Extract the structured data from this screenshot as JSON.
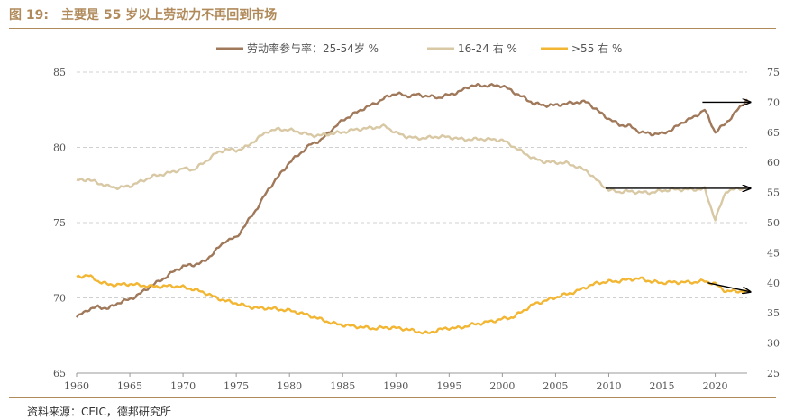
{
  "figure": {
    "number": "图 19:",
    "title": "主要是 55 岁以上劳动力不再回到市场"
  },
  "source": "资料来源：CEIC，德邦研究所",
  "colors": {
    "brand": "#b08a5a",
    "series_25_54": "#a0785a",
    "series_16_24": "#d8c8a4",
    "series_55": "#f2b633",
    "arrow": "#000000",
    "grid": "#d0d0d0"
  },
  "chart_data": {
    "type": "line",
    "x_range": [
      1960,
      2023
    ],
    "x_ticks": [
      1960,
      1965,
      1970,
      1975,
      1980,
      1985,
      1990,
      1995,
      2000,
      2005,
      2010,
      2015,
      2020
    ],
    "y_left": {
      "range": [
        65,
        85
      ],
      "ticks": [
        65,
        70,
        75,
        80,
        85
      ]
    },
    "y_right": {
      "range": [
        25,
        75
      ],
      "ticks": [
        25,
        30,
        35,
        40,
        45,
        50,
        55,
        60,
        65,
        70,
        75
      ]
    },
    "grid": "horizontal dashed",
    "legend_position": "top",
    "series": [
      {
        "name": "劳动率参与率：25-54岁 %",
        "axis": "left",
        "points": [
          [
            1960,
            68.7
          ],
          [
            1961,
            69.2
          ],
          [
            1962,
            69.4
          ],
          [
            1963,
            69.3
          ],
          [
            1964,
            69.7
          ],
          [
            1965,
            69.9
          ],
          [
            1966,
            70.3
          ],
          [
            1967,
            70.8
          ],
          [
            1968,
            71.2
          ],
          [
            1969,
            71.7
          ],
          [
            1970,
            72.1
          ],
          [
            1971,
            72.2
          ],
          [
            1972,
            72.4
          ],
          [
            1973,
            73.1
          ],
          [
            1974,
            73.8
          ],
          [
            1975,
            74.0
          ],
          [
            1976,
            75.0
          ],
          [
            1977,
            76.0
          ],
          [
            1978,
            77.2
          ],
          [
            1979,
            78.1
          ],
          [
            1980,
            79.0
          ],
          [
            1981,
            79.6
          ],
          [
            1982,
            80.2
          ],
          [
            1983,
            80.5
          ],
          [
            1984,
            81.2
          ],
          [
            1985,
            81.8
          ],
          [
            1986,
            82.2
          ],
          [
            1987,
            82.6
          ],
          [
            1988,
            82.9
          ],
          [
            1989,
            83.3
          ],
          [
            1990,
            83.6
          ],
          [
            1991,
            83.4
          ],
          [
            1992,
            83.5
          ],
          [
            1993,
            83.4
          ],
          [
            1994,
            83.3
          ],
          [
            1995,
            83.5
          ],
          [
            1996,
            83.7
          ],
          [
            1997,
            84.1
          ],
          [
            1998,
            84.1
          ],
          [
            1999,
            84.1
          ],
          [
            2000,
            84.1
          ],
          [
            2001,
            83.7
          ],
          [
            2002,
            83.3
          ],
          [
            2003,
            82.9
          ],
          [
            2004,
            82.8
          ],
          [
            2005,
            82.8
          ],
          [
            2006,
            82.9
          ],
          [
            2007,
            83.0
          ],
          [
            2008,
            83.0
          ],
          [
            2009,
            82.4
          ],
          [
            2010,
            81.9
          ],
          [
            2011,
            81.5
          ],
          [
            2012,
            81.4
          ],
          [
            2013,
            81.0
          ],
          [
            2014,
            80.9
          ],
          [
            2015,
            80.9
          ],
          [
            2016,
            81.2
          ],
          [
            2017,
            81.7
          ],
          [
            2018,
            82.0
          ],
          [
            2019,
            82.5
          ],
          [
            2020,
            81.0
          ],
          [
            2021,
            81.6
          ],
          [
            2022,
            82.4
          ],
          [
            2023,
            83.2
          ]
        ]
      },
      {
        "name": "16-24 右 %",
        "axis": "right",
        "points": [
          [
            1960,
            57.0
          ],
          [
            1961,
            57.2
          ],
          [
            1962,
            56.6
          ],
          [
            1963,
            56.0
          ],
          [
            1964,
            55.8
          ],
          [
            1965,
            56.1
          ],
          [
            1966,
            56.8
          ],
          [
            1967,
            57.6
          ],
          [
            1968,
            58.0
          ],
          [
            1969,
            58.4
          ],
          [
            1970,
            59.0
          ],
          [
            1971,
            58.8
          ],
          [
            1972,
            60.0
          ],
          [
            1973,
            61.4
          ],
          [
            1974,
            62.2
          ],
          [
            1975,
            62.0
          ],
          [
            1976,
            62.6
          ],
          [
            1977,
            64.0
          ],
          [
            1978,
            65.2
          ],
          [
            1979,
            65.5
          ],
          [
            1980,
            65.4
          ],
          [
            1981,
            65.0
          ],
          [
            1982,
            64.5
          ],
          [
            1983,
            64.5
          ],
          [
            1984,
            64.8
          ],
          [
            1985,
            65.0
          ],
          [
            1986,
            65.4
          ],
          [
            1987,
            65.6
          ],
          [
            1988,
            65.8
          ],
          [
            1989,
            66.0
          ],
          [
            1990,
            64.9
          ],
          [
            1991,
            64.3
          ],
          [
            1992,
            64.0
          ],
          [
            1993,
            64.1
          ],
          [
            1994,
            64.3
          ],
          [
            1995,
            64.2
          ],
          [
            1996,
            63.9
          ],
          [
            1997,
            63.8
          ],
          [
            1998,
            63.9
          ],
          [
            1999,
            63.8
          ],
          [
            2000,
            63.7
          ],
          [
            2001,
            62.7
          ],
          [
            2002,
            61.6
          ],
          [
            2003,
            60.6
          ],
          [
            2004,
            60.1
          ],
          [
            2005,
            60.0
          ],
          [
            2006,
            59.9
          ],
          [
            2007,
            59.3
          ],
          [
            2008,
            58.5
          ],
          [
            2009,
            56.8
          ],
          [
            2010,
            55.4
          ],
          [
            2011,
            55.1
          ],
          [
            2012,
            55.2
          ],
          [
            2013,
            55.0
          ],
          [
            2014,
            55.0
          ],
          [
            2015,
            55.3
          ],
          [
            2016,
            55.5
          ],
          [
            2017,
            55.5
          ],
          [
            2018,
            55.5
          ],
          [
            2019,
            55.6
          ],
          [
            2020,
            50.5
          ],
          [
            2021,
            55.2
          ],
          [
            2022,
            55.6
          ],
          [
            2023,
            55.8
          ]
        ]
      },
      {
        "name": ">55 右 %",
        "axis": "right",
        "points": [
          [
            1960,
            40.9
          ],
          [
            1961,
            41.3
          ],
          [
            1962,
            40.3
          ],
          [
            1963,
            39.7
          ],
          [
            1964,
            39.7
          ],
          [
            1965,
            39.8
          ],
          [
            1966,
            39.6
          ],
          [
            1967,
            39.4
          ],
          [
            1968,
            39.4
          ],
          [
            1969,
            39.5
          ],
          [
            1970,
            39.3
          ],
          [
            1971,
            38.9
          ],
          [
            1972,
            38.4
          ],
          [
            1973,
            37.6
          ],
          [
            1974,
            37.0
          ],
          [
            1975,
            36.6
          ],
          [
            1976,
            36.1
          ],
          [
            1977,
            35.8
          ],
          [
            1978,
            35.8
          ],
          [
            1979,
            35.6
          ],
          [
            1980,
            35.4
          ],
          [
            1981,
            35.0
          ],
          [
            1982,
            34.5
          ],
          [
            1983,
            33.9
          ],
          [
            1984,
            33.3
          ],
          [
            1985,
            33.0
          ],
          [
            1986,
            32.8
          ],
          [
            1987,
            32.6
          ],
          [
            1988,
            32.4
          ],
          [
            1989,
            32.6
          ],
          [
            1990,
            32.5
          ],
          [
            1991,
            32.3
          ],
          [
            1992,
            31.9
          ],
          [
            1993,
            31.6
          ],
          [
            1994,
            32.2
          ],
          [
            1995,
            32.5
          ],
          [
            1996,
            32.5
          ],
          [
            1997,
            33.0
          ],
          [
            1998,
            33.3
          ],
          [
            1999,
            33.6
          ],
          [
            2000,
            34.0
          ],
          [
            2001,
            34.3
          ],
          [
            2002,
            35.4
          ],
          [
            2003,
            36.5
          ],
          [
            2004,
            37.0
          ],
          [
            2005,
            37.6
          ],
          [
            2006,
            38.1
          ],
          [
            2007,
            38.6
          ],
          [
            2008,
            39.4
          ],
          [
            2009,
            40.0
          ],
          [
            2010,
            40.2
          ],
          [
            2011,
            40.3
          ],
          [
            2012,
            40.6
          ],
          [
            2013,
            40.7
          ],
          [
            2014,
            40.2
          ],
          [
            2015,
            40.0
          ],
          [
            2016,
            40.1
          ],
          [
            2017,
            40.1
          ],
          [
            2018,
            40.1
          ],
          [
            2019,
            40.3
          ],
          [
            2020,
            39.8
          ],
          [
            2021,
            38.6
          ],
          [
            2022,
            38.6
          ],
          [
            2023,
            38.6
          ]
        ]
      }
    ],
    "annotations": [
      {
        "type": "arrow",
        "axis": "right",
        "from": [
          2018.8,
          70.0
        ],
        "to": [
          2023.3,
          70.0
        ]
      },
      {
        "type": "arrow",
        "axis": "right",
        "from": [
          2009.7,
          55.7
        ],
        "to": [
          2023.3,
          55.7
        ]
      },
      {
        "type": "arrow",
        "axis": "right",
        "from": [
          2019.3,
          40.0
        ],
        "to": [
          2023.3,
          38.5
        ]
      }
    ]
  }
}
